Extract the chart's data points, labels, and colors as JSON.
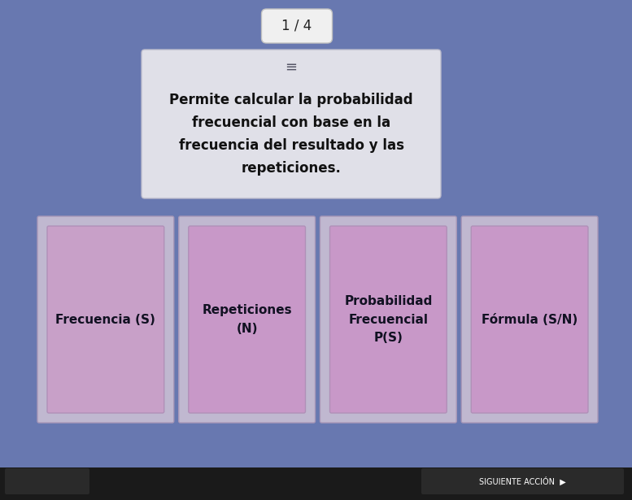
{
  "background_color": "#6878b0",
  "page_indicator": "1 / 4",
  "page_indicator_bg": "#f0f0f0",
  "menu_icon": "≡",
  "description_text": "Permite calcular la probabilidad\nfrecuencial con base en la\nfrecuencia del resultado y las\nrepeticiones.",
  "description_bg": "#e0e0e8",
  "description_border": "#bbbbcc",
  "cards": [
    {
      "label": "Frecuencia (S)",
      "outer_color": "#c0b8d0",
      "inner_color": "#c8a0c8",
      "outer_border": "#a898b8",
      "inner_border": "#b090b8"
    },
    {
      "label": "Repeticiones\n(N)",
      "outer_color": "#c0b8d0",
      "inner_color": "#c898c8",
      "outer_border": "#a898b8",
      "inner_border": "#b090b8"
    },
    {
      "label": "Probabilidad\nFrecuencial\nP(S)",
      "outer_color": "#c0b8d0",
      "inner_color": "#c898c8",
      "outer_border": "#a898b8",
      "inner_border": "#b090b8"
    },
    {
      "label": "Fórmula (S/N)",
      "outer_color": "#c0b8d0",
      "inner_color": "#c898c8",
      "outer_border": "#a898b8",
      "inner_border": "#b090b8"
    }
  ],
  "card_text_color": "#111122",
  "bottom_bar_color": "#1a1a1a",
  "title_fontsize": 12,
  "card_fontsize": 11,
  "page_fontsize": 12
}
